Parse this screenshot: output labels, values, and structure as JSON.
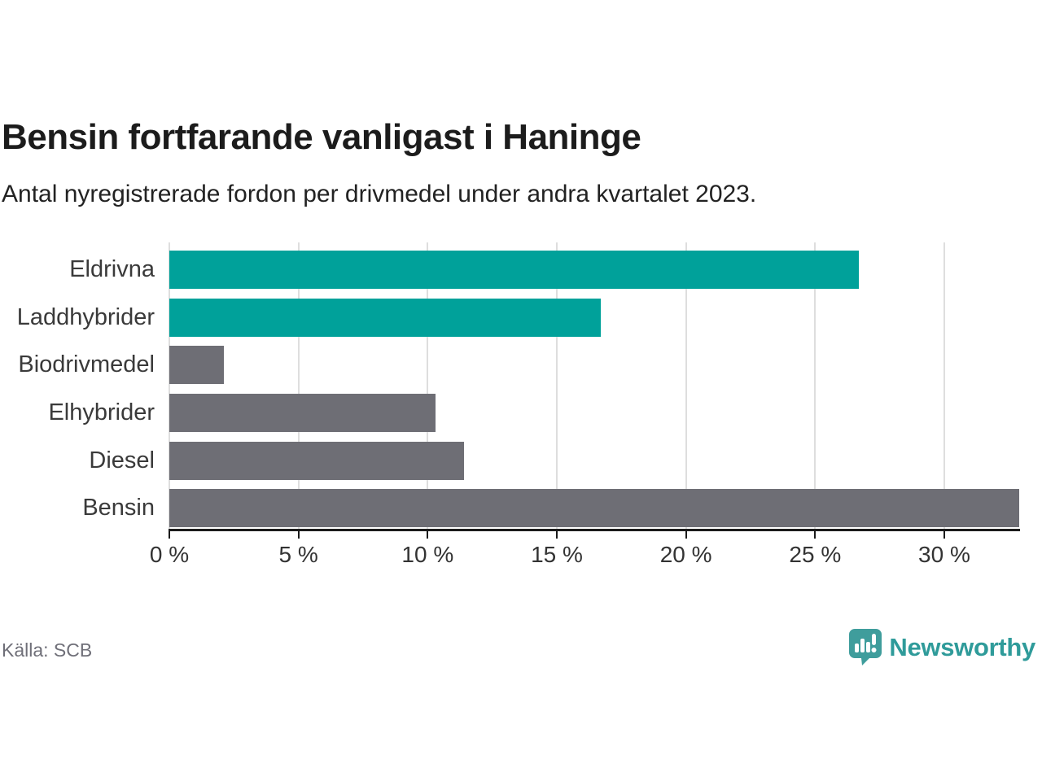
{
  "header": {
    "title": "Bensin fortfarande vanligast i Haninge",
    "subtitle": "Antal nyregistrerade fordon per drivmedel under andra kvartalet 2023."
  },
  "chart_data": {
    "type": "bar",
    "orientation": "horizontal",
    "title": "Bensin fortfarande vanligast i Haninge",
    "subtitle": "Antal nyregistrerade fordon per drivmedel under andra kvartalet 2023.",
    "categories": [
      "Eldrivna",
      "Laddhybrider",
      "Biodrivmedel",
      "Elhybrider",
      "Diesel",
      "Bensin"
    ],
    "values": [
      26.7,
      16.7,
      2.1,
      10.3,
      11.4,
      32.9
    ],
    "unit": "%",
    "xlim": [
      0,
      32.9
    ],
    "x_ticks": [
      0,
      5,
      10,
      15,
      20,
      25,
      30
    ],
    "x_tick_labels": [
      "0 %",
      "5 %",
      "10 %",
      "15 %",
      "20 %",
      "25 %",
      "30 %"
    ],
    "grid": "vertical-on",
    "legend": "none",
    "bar_colors": [
      "#00a19a",
      "#00a19a",
      "#6e6e75",
      "#6e6e75",
      "#6e6e75",
      "#6e6e75"
    ],
    "highlight_color": "#00a19a",
    "default_color": "#6e6e75"
  },
  "footer": {
    "source": "Källa: SCB",
    "brand_name": "Newsworthy"
  },
  "colors": {
    "accent_teal": "#00a19a",
    "bar_gray": "#6e6e75",
    "gridline": "#dedede",
    "axis": "#1b1b1b",
    "logo_teal": "#3f9d9c",
    "logo_text": "#2f9b9a",
    "title_text": "#1c1c1c",
    "label_text": "#3a3a3a",
    "source_text": "#6f6f78"
  }
}
